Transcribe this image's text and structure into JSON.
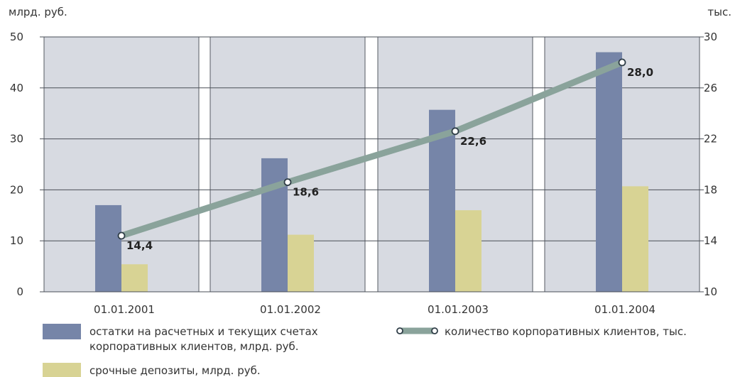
{
  "chart_data": {
    "type": "bar",
    "categories": [
      "01.01.2001",
      "01.01.2002",
      "01.01.2003",
      "01.01.2004"
    ],
    "y_left": {
      "unit": "млрд. руб.",
      "range": [
        0,
        50
      ],
      "ticks": [
        0,
        10,
        20,
        30,
        40,
        50
      ]
    },
    "y_right": {
      "unit": "тыс.",
      "range": [
        10,
        30
      ],
      "ticks": [
        10,
        14,
        18,
        22,
        26,
        30
      ]
    },
    "grid": true,
    "legend_position": "bottom",
    "series": [
      {
        "name": "остатки на расчетных и текущих счетах корпоративных клиентов, млрд. руб.",
        "legend_lines": [
          "остатки на расчетных и текущих счетах",
          "корпоративных клиентов, млрд. руб."
        ],
        "type": "bar",
        "axis": "left",
        "color": "#7685a8",
        "values": [
          17.0,
          26.2,
          35.7,
          47.0
        ]
      },
      {
        "name": "срочные депозиты, млрд. руб.",
        "legend_lines": [
          "срочные депозиты, млрд. руб."
        ],
        "type": "bar",
        "axis": "left",
        "color": "#d8d394",
        "values": [
          5.4,
          11.2,
          16.0,
          20.7
        ]
      },
      {
        "name": "количество корпоративных клиентов, тыс.",
        "legend_lines": [
          "количество корпоративных клиентов, тыс."
        ],
        "type": "line",
        "axis": "right",
        "color": "#8aa39b",
        "values": [
          14.4,
          18.6,
          22.6,
          28.0
        ],
        "labels": [
          "14,4",
          "18,6",
          "22,6",
          "28,0"
        ]
      }
    ]
  }
}
